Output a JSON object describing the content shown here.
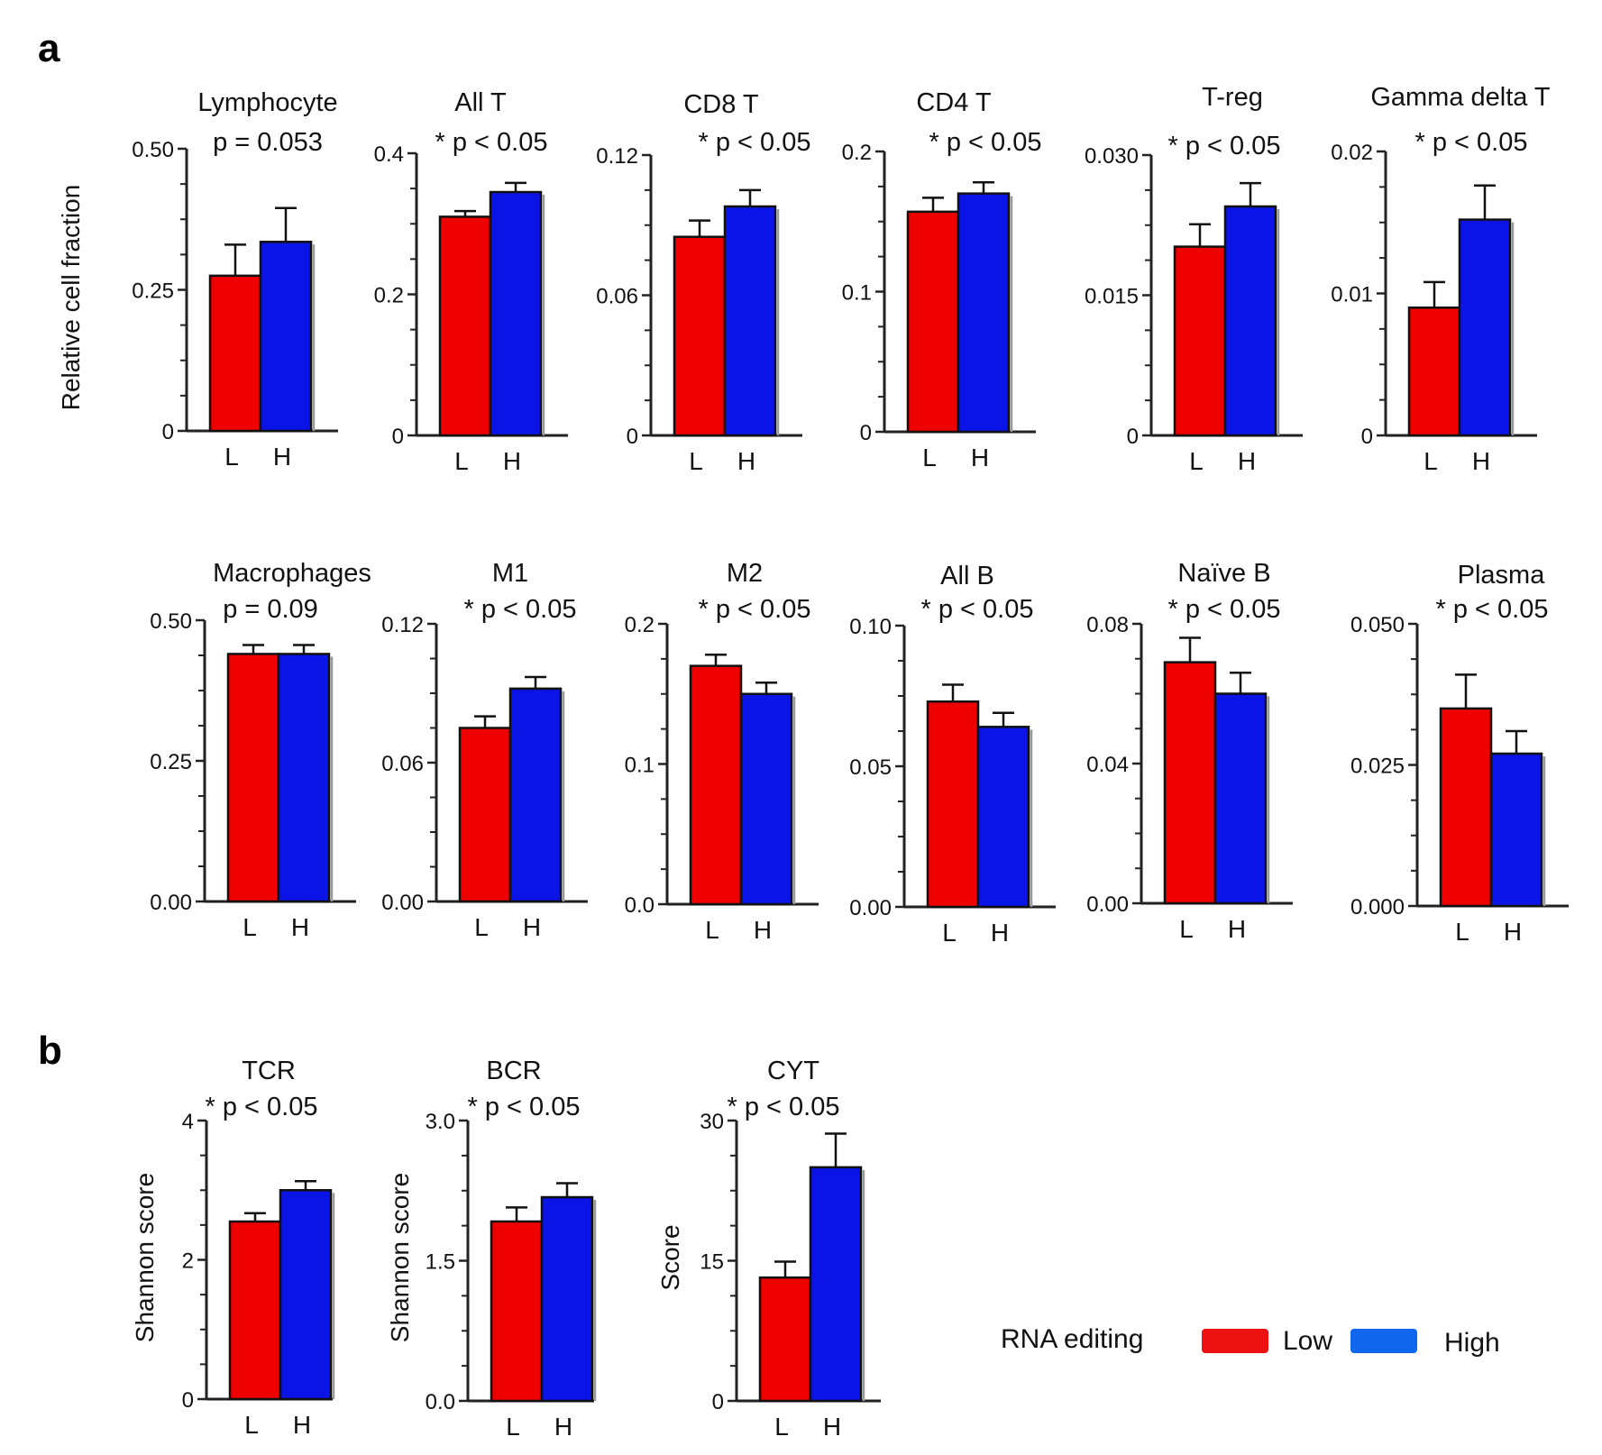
{
  "panels": {
    "a": "a",
    "b": "b"
  },
  "colors": {
    "low": "#ee0000",
    "high": "#0a14e6",
    "axis": "#222222"
  },
  "legend": {
    "title": "RNA editing",
    "low": "Low",
    "high": "High",
    "low_color": "#ee1111",
    "high_color": "#1166ee"
  },
  "chart_data": [
    {
      "type": "bar",
      "title": "Lymphocyte",
      "pvalue": "p = 0.053",
      "ylabel": "Relative  cell  fraction",
      "categories": [
        "L",
        "H"
      ],
      "values": [
        0.275,
        0.335
      ],
      "errors": [
        0.055,
        0.06
      ],
      "ylim": [
        0,
        0.5
      ],
      "yticks": [
        "0",
        "0.25",
        "0.50"
      ],
      "minor_ticks": 3
    },
    {
      "type": "bar",
      "title": "All T",
      "pvalue": "* p < 0.05",
      "ylabel": "",
      "categories": [
        "L",
        "H"
      ],
      "values": [
        0.31,
        0.345
      ],
      "errors": [
        0.008,
        0.013
      ],
      "ylim": [
        0,
        0.4
      ],
      "yticks": [
        "0",
        "0.2",
        "0.4"
      ],
      "minor_ticks": 3
    },
    {
      "type": "bar",
      "title": "CD8 T",
      "pvalue": "* p < 0.05",
      "ylabel": "",
      "categories": [
        "L",
        "H"
      ],
      "values": [
        0.085,
        0.098
      ],
      "errors": [
        0.007,
        0.007
      ],
      "ylim": [
        0,
        0.12
      ],
      "yticks": [
        "0",
        "0.06",
        "0.12"
      ],
      "minor_ticks": 3
    },
    {
      "type": "bar",
      "title": "CD4 T",
      "pvalue": "* p < 0.05",
      "ylabel": "",
      "categories": [
        "L",
        "H"
      ],
      "values": [
        0.157,
        0.17
      ],
      "errors": [
        0.01,
        0.008
      ],
      "ylim": [
        0,
        0.2
      ],
      "yticks": [
        "0",
        "0.1",
        "0.2"
      ],
      "minor_ticks": 3
    },
    {
      "type": "bar",
      "title": "T-reg",
      "pvalue": "* p < 0.05",
      "ylabel": "",
      "categories": [
        "L",
        "H"
      ],
      "values": [
        0.0202,
        0.0245
      ],
      "errors": [
        0.0024,
        0.0025
      ],
      "ylim": [
        0,
        0.03
      ],
      "yticks": [
        "0",
        "0.015",
        "0.030"
      ],
      "minor_ticks": 3
    },
    {
      "type": "bar",
      "title": "Gamma delta T",
      "pvalue": "* p < 0.05",
      "ylabel": "",
      "categories": [
        "L",
        "H"
      ],
      "values": [
        0.009,
        0.0152
      ],
      "errors": [
        0.0018,
        0.0024
      ],
      "ylim": [
        0,
        0.02
      ],
      "yticks": [
        "0",
        "0.01",
        "0.02"
      ],
      "minor_ticks": 3
    },
    {
      "type": "bar",
      "title": "Macrophages",
      "pvalue": "p = 0.09",
      "ylabel": "",
      "categories": [
        "L",
        "H"
      ],
      "values": [
        0.44,
        0.44
      ],
      "errors": [
        0.016,
        0.016
      ],
      "ylim": [
        0,
        0.5
      ],
      "yticks": [
        "0.00",
        "0.25",
        "0.50"
      ],
      "minor_ticks": 3
    },
    {
      "type": "bar",
      "title": "M1",
      "pvalue": "* p < 0.05",
      "ylabel": "",
      "categories": [
        "L",
        "H"
      ],
      "values": [
        0.075,
        0.092
      ],
      "errors": [
        0.005,
        0.005
      ],
      "ylim": [
        0,
        0.12
      ],
      "yticks": [
        "0.00",
        "0.06",
        "0.12"
      ],
      "minor_ticks": 3
    },
    {
      "type": "bar",
      "title": "M2",
      "pvalue": "* p < 0.05",
      "ylabel": "",
      "categories": [
        "L",
        "H"
      ],
      "values": [
        0.17,
        0.15
      ],
      "errors": [
        0.008,
        0.008
      ],
      "ylim": [
        0,
        0.2
      ],
      "yticks": [
        "0.0",
        "0.1",
        "0.2"
      ],
      "minor_ticks": 3
    },
    {
      "type": "bar",
      "title": "All B",
      "pvalue": "* p < 0.05",
      "ylabel": "",
      "categories": [
        "L",
        "H"
      ],
      "values": [
        0.073,
        0.064
      ],
      "errors": [
        0.006,
        0.005
      ],
      "ylim": [
        0,
        0.1
      ],
      "yticks": [
        "0.00",
        "0.05",
        "0.10"
      ],
      "minor_ticks": 3
    },
    {
      "type": "bar",
      "title": "Naïve B",
      "pvalue": "* p < 0.05",
      "ylabel": "",
      "categories": [
        "L",
        "H"
      ],
      "values": [
        0.069,
        0.06
      ],
      "errors": [
        0.007,
        0.006
      ],
      "ylim": [
        0,
        0.08
      ],
      "yticks": [
        "0.00",
        "0.04",
        "0.08"
      ],
      "minor_ticks": 3
    },
    {
      "type": "bar",
      "title": "Plasma",
      "pvalue": "* p < 0.05",
      "ylabel": "",
      "categories": [
        "L",
        "H"
      ],
      "values": [
        0.035,
        0.027
      ],
      "errors": [
        0.006,
        0.004
      ],
      "ylim": [
        0,
        0.05
      ],
      "yticks": [
        "0.000",
        "0.025",
        "0.050"
      ],
      "minor_ticks": 3
    },
    {
      "type": "bar",
      "title": "TCR",
      "pvalue": "* p < 0.05",
      "ylabel": "Shannon score",
      "categories": [
        "L",
        "H"
      ],
      "values": [
        2.55,
        3.0
      ],
      "errors": [
        0.12,
        0.13
      ],
      "ylim": [
        0,
        4
      ],
      "yticks": [
        "0",
        "2",
        "4"
      ],
      "minor_ticks": 3
    },
    {
      "type": "bar",
      "title": "BCR",
      "pvalue": "* p < 0.05",
      "ylabel": "Shannon score",
      "categories": [
        "L",
        "H"
      ],
      "values": [
        1.92,
        2.18
      ],
      "errors": [
        0.15,
        0.15
      ],
      "ylim": [
        0,
        3
      ],
      "yticks": [
        "0.0",
        "1.5",
        "3.0"
      ],
      "minor_ticks": 3
    },
    {
      "type": "bar",
      "title": "CYT",
      "pvalue": "* p < 0.05",
      "ylabel": "Score",
      "categories": [
        "L",
        "H"
      ],
      "values": [
        13.2,
        25.0
      ],
      "errors": [
        1.7,
        3.6
      ],
      "ylim": [
        0,
        30
      ],
      "yticks": [
        "0",
        "15",
        "30"
      ],
      "minor_ticks": 3
    }
  ]
}
